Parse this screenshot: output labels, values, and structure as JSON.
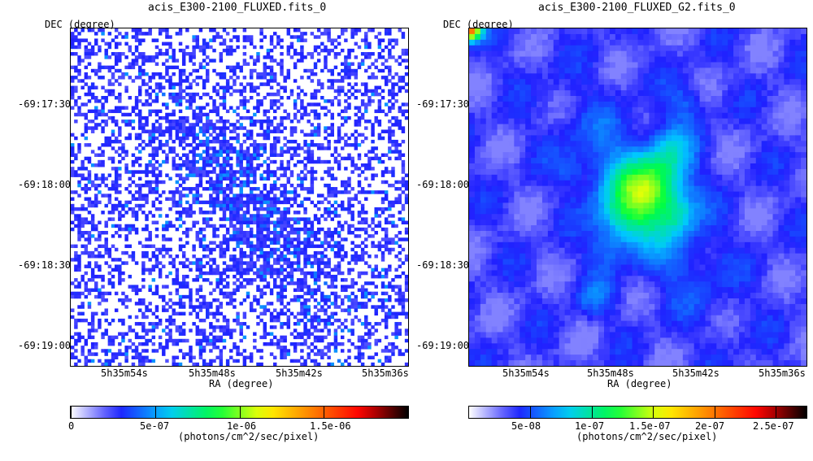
{
  "panels": [
    {
      "title": "acis_E300-2100_FLUXED.fits_0",
      "dec_label": "DEC (degree)",
      "ra_label": "RA (degree)",
      "dec_ticks": [
        "-69:17:30",
        "-69:18:00",
        "-69:18:30",
        "-69:19:00"
      ],
      "ra_ticks": [
        "5h35m54s",
        "5h35m48s",
        "5h35m42s",
        "5h35m36s"
      ],
      "colorbar_ticks": [
        "0",
        "5e-07",
        "1e-06",
        "1.5e-06"
      ],
      "colorbar_unit": "(photons/cm^2/sec/pixel)",
      "render": "binned"
    },
    {
      "title": "acis_E300-2100_FLUXED_G2.fits_0",
      "dec_label": "DEC (degree)",
      "ra_label": "RA (degree)",
      "dec_ticks": [
        "-69:17:30",
        "-69:18:00",
        "-69:18:30",
        "-69:19:00"
      ],
      "ra_ticks": [
        "5h35m54s",
        "5h35m48s",
        "5h35m42s",
        "5h35m36s"
      ],
      "colorbar_ticks": [
        "5e-08",
        "1e-07",
        "1.5e-07",
        "2e-07",
        "2.5e-07"
      ],
      "colorbar_unit": "(photons/cm^2/sec/pixel)",
      "render": "smoothed"
    }
  ],
  "chart_data": [
    {
      "type": "heatmap",
      "title": "acis_E300-2100_FLUXED.fits_0",
      "xlabel": "RA (degree)",
      "ylabel": "DEC (degree)",
      "x_ticks": [
        "5h35m54s",
        "5h35m48s",
        "5h35m42s",
        "5h35m36s"
      ],
      "y_ticks": [
        "-69:17:30",
        "-69:18:00",
        "-69:18:30",
        "-69:19:00"
      ],
      "colorbar": {
        "unit": "(photons/cm^2/sec/pixel)",
        "ticks": [
          0,
          5e-07,
          1e-06,
          1.5e-06
        ],
        "range": [
          0,
          2e-06
        ]
      },
      "colormap": [
        "#ffffff",
        "#2020ff",
        "#00c8ff",
        "#00ff40",
        "#ffff00",
        "#ff8000",
        "#ff0000",
        "#000000"
      ]
    },
    {
      "type": "heatmap",
      "title": "acis_E300-2100_FLUXED_G2.fits_0",
      "xlabel": "RA (degree)",
      "ylabel": "DEC (degree)",
      "x_ticks": [
        "5h35m54s",
        "5h35m48s",
        "5h35m42s",
        "5h35m36s"
      ],
      "y_ticks": [
        "-69:17:30",
        "-69:18:00",
        "-69:18:30",
        "-69:19:00"
      ],
      "colorbar": {
        "unit": "(photons/cm^2/sec/pixel)",
        "ticks": [
          5e-08,
          1e-07,
          1.5e-07,
          2e-07,
          2.5e-07
        ],
        "range": [
          0,
          2.75e-07
        ]
      },
      "colormap": [
        "#ffffff",
        "#2020ff",
        "#00c8ff",
        "#00ff40",
        "#ffff00",
        "#ff8000",
        "#ff0000",
        "#000000"
      ]
    }
  ]
}
